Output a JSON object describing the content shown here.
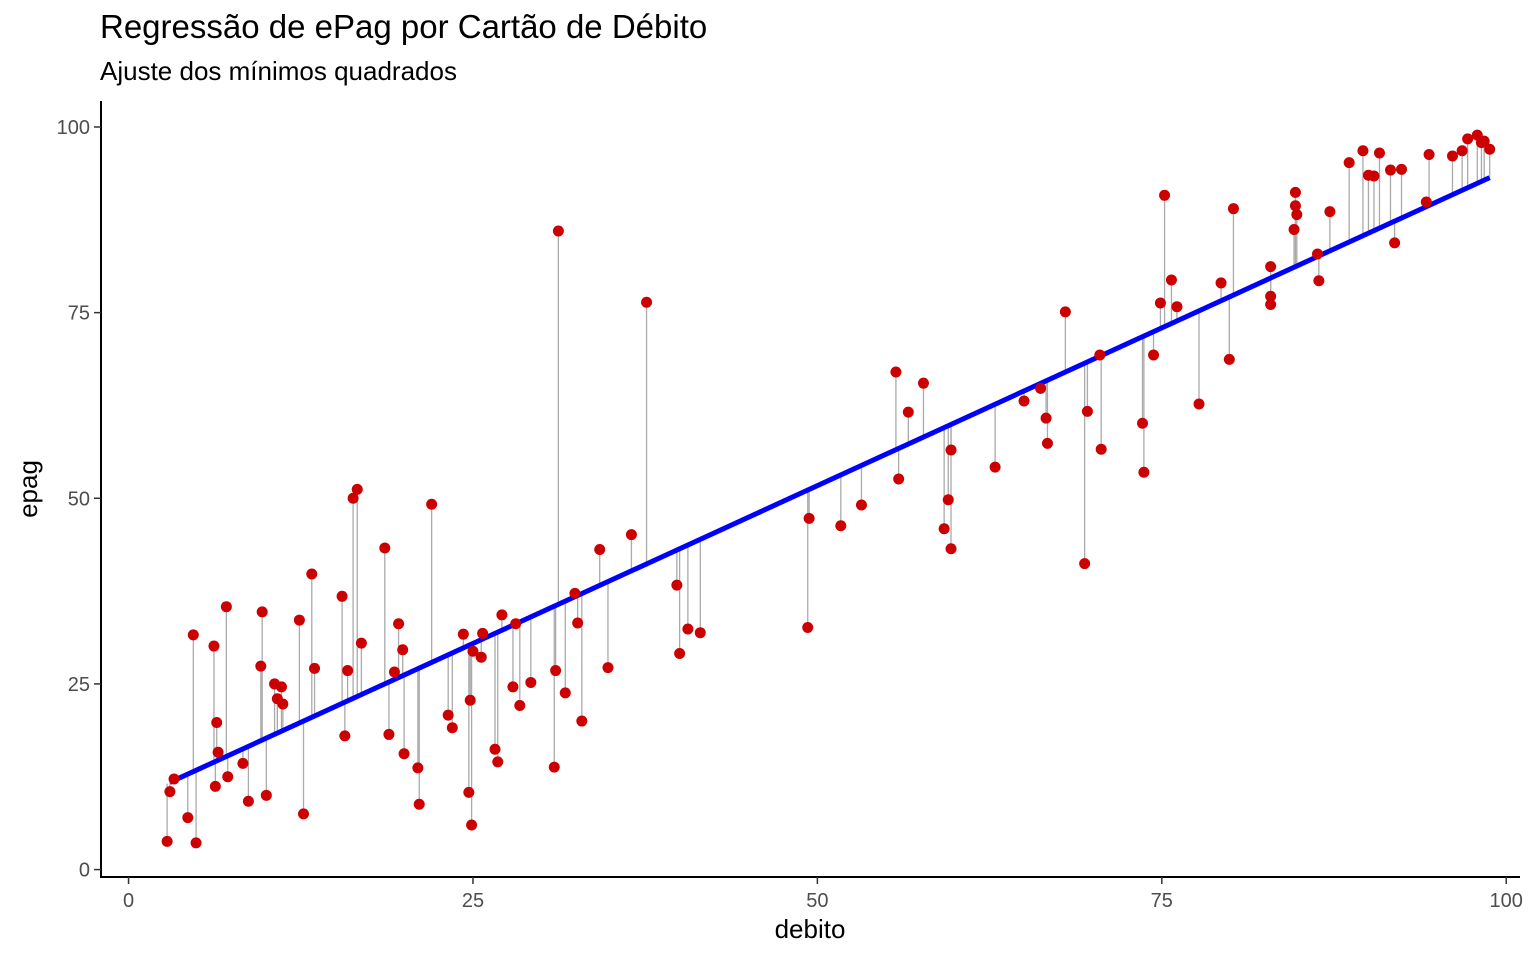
{
  "chart_data": {
    "type": "scatter",
    "title": "Regressão de ePag por Cartão de Débito",
    "subtitle": "Ajuste dos mínimos quadrados",
    "xlabel": "debito",
    "ylabel": "epag",
    "xlim": [
      -2,
      101
    ],
    "ylim": [
      -1,
      103.5
    ],
    "x_ticks": [
      0,
      25,
      50,
      75,
      100
    ],
    "y_ticks": [
      0,
      25,
      50,
      75,
      100
    ],
    "grid": false,
    "legend": "none",
    "colors": {
      "points": "#cc0000",
      "fit_line": "#0000ff",
      "residuals": "#aaaaaa"
    },
    "regression": {
      "intercept": 9.2,
      "slope": 0.85,
      "x_range": [
        3,
        98.8
      ]
    },
    "points": [
      [
        2.8,
        3.8
      ],
      [
        3,
        10.5
      ],
      [
        3.3,
        12.2
      ],
      [
        4.3,
        7
      ],
      [
        4.7,
        31.6
      ],
      [
        4.9,
        3.6
      ],
      [
        6.2,
        30.1
      ],
      [
        6.3,
        11.2
      ],
      [
        6.4,
        19.8
      ],
      [
        6.5,
        15.8
      ],
      [
        7.1,
        35.4
      ],
      [
        7.2,
        12.5
      ],
      [
        8.3,
        14.3
      ],
      [
        8.7,
        9.2
      ],
      [
        9.6,
        27.4
      ],
      [
        9.7,
        34.7
      ],
      [
        10,
        10
      ],
      [
        10.6,
        25
      ],
      [
        10.8,
        23
      ],
      [
        11.1,
        24.6
      ],
      [
        11.2,
        22.3
      ],
      [
        12.4,
        33.6
      ],
      [
        12.7,
        7.5
      ],
      [
        13.3,
        39.8
      ],
      [
        13.5,
        27.1
      ],
      [
        15.5,
        36.8
      ],
      [
        15.7,
        18
      ],
      [
        15.9,
        26.8
      ],
      [
        16.3,
        50
      ],
      [
        16.6,
        51.2
      ],
      [
        16.9,
        30.5
      ],
      [
        18.6,
        43.3
      ],
      [
        18.9,
        18.2
      ],
      [
        19.3,
        26.6
      ],
      [
        19.6,
        33.1
      ],
      [
        19.9,
        29.6
      ],
      [
        20,
        15.6
      ],
      [
        21,
        13.7
      ],
      [
        21.1,
        8.8
      ],
      [
        22,
        49.2
      ],
      [
        23.2,
        20.8
      ],
      [
        23.5,
        19.1
      ],
      [
        24.3,
        31.7
      ],
      [
        24.7,
        10.4
      ],
      [
        24.8,
        22.8
      ],
      [
        24.9,
        6
      ],
      [
        25,
        29.4
      ],
      [
        25.6,
        28.6
      ],
      [
        25.7,
        31.8
      ],
      [
        26.6,
        16.2
      ],
      [
        26.8,
        14.5
      ],
      [
        27.1,
        34.3
      ],
      [
        27.9,
        24.6
      ],
      [
        28.1,
        33.1
      ],
      [
        28.4,
        22.1
      ],
      [
        29.2,
        25.2
      ],
      [
        30.9,
        13.8
      ],
      [
        31,
        26.8
      ],
      [
        31.2,
        86
      ],
      [
        31.7,
        23.8
      ],
      [
        32.4,
        37.2
      ],
      [
        32.6,
        33.2
      ],
      [
        32.9,
        20
      ],
      [
        34.2,
        43.1
      ],
      [
        34.8,
        27.2
      ],
      [
        36.5,
        45.1
      ],
      [
        37.6,
        76.4
      ],
      [
        39.8,
        38.3
      ],
      [
        40,
        29.1
      ],
      [
        40.6,
        32.4
      ],
      [
        41.5,
        31.9
      ],
      [
        49.3,
        32.6
      ],
      [
        49.4,
        47.3
      ],
      [
        51.7,
        46.3
      ],
      [
        53.2,
        49.1
      ],
      [
        55.7,
        67
      ],
      [
        55.9,
        52.6
      ],
      [
        56.6,
        61.6
      ],
      [
        57.7,
        65.5
      ],
      [
        59.2,
        45.9
      ],
      [
        59.5,
        49.8
      ],
      [
        59.7,
        43.2
      ],
      [
        59.7,
        56.5
      ],
      [
        62.9,
        54.2
      ],
      [
        65,
        63.1
      ],
      [
        66.2,
        64.8
      ],
      [
        66.6,
        60.8
      ],
      [
        66.7,
        57.4
      ],
      [
        68,
        75.1
      ],
      [
        69.4,
        41.2
      ],
      [
        69.6,
        61.7
      ],
      [
        70.5,
        69.3
      ],
      [
        70.6,
        56.6
      ],
      [
        73.6,
        60.1
      ],
      [
        73.7,
        53.5
      ],
      [
        74.4,
        69.3
      ],
      [
        74.9,
        76.3
      ],
      [
        75.2,
        90.8
      ],
      [
        75.7,
        79.4
      ],
      [
        76.1,
        75.8
      ],
      [
        77.7,
        62.7
      ],
      [
        79.3,
        79
      ],
      [
        79.9,
        68.7
      ],
      [
        80.2,
        89
      ],
      [
        82.9,
        81.2
      ],
      [
        82.9,
        77.2
      ],
      [
        82.9,
        76.1
      ],
      [
        84.6,
        86.2
      ],
      [
        84.7,
        89.4
      ],
      [
        84.7,
        91.2
      ],
      [
        84.8,
        88.2
      ],
      [
        86.3,
        82.9
      ],
      [
        86.4,
        79.3
      ],
      [
        87.2,
        88.6
      ],
      [
        88.6,
        95.2
      ],
      [
        89.6,
        96.8
      ],
      [
        90,
        93.5
      ],
      [
        90.4,
        93.4
      ],
      [
        90.8,
        96.5
      ],
      [
        91.6,
        94.2
      ],
      [
        91.9,
        84.4
      ],
      [
        92.4,
        94.3
      ],
      [
        94.2,
        89.9
      ],
      [
        94.4,
        96.3
      ],
      [
        96.1,
        96.1
      ],
      [
        96.8,
        96.8
      ],
      [
        97.2,
        98.4
      ],
      [
        97.9,
        98.9
      ],
      [
        98.2,
        97.9
      ],
      [
        98.4,
        98.1
      ],
      [
        98.8,
        97
      ]
    ]
  }
}
